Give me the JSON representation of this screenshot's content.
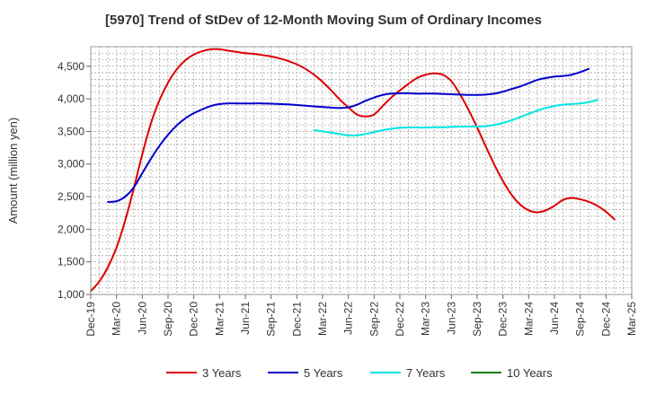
{
  "chart_data": {
    "type": "line",
    "title": "[5970]  Trend of StDev of 12-Month Moving Sum of Ordinary Incomes",
    "ylabel": "Amount (million yen)",
    "xlabel": "",
    "ylim": [
      1000,
      4800
    ],
    "yticks": [
      1000,
      1500,
      2000,
      2500,
      3000,
      3500,
      4000,
      4500
    ],
    "ytick_labels": [
      "1,000",
      "1,500",
      "2,000",
      "2,500",
      "3,000",
      "3,500",
      "4,000",
      "4,500"
    ],
    "x_categories": [
      "Dec-19",
      "Mar-20",
      "Jun-20",
      "Sep-20",
      "Dec-20",
      "Mar-21",
      "Jun-21",
      "Sep-21",
      "Dec-21",
      "Mar-22",
      "Jun-22",
      "Sep-22",
      "Dec-22",
      "Mar-23",
      "Jun-23",
      "Sep-23",
      "Dec-23",
      "Mar-24",
      "Jun-24",
      "Sep-24",
      "Dec-24",
      "Mar-25"
    ],
    "x_unit": "month",
    "grid": true,
    "legend_position": "bottom",
    "series": [
      {
        "name": "3 Years",
        "color": "#dd0000",
        "start": "Dec-19",
        "values": [
          1050,
          1200,
          1420,
          1720,
          2130,
          2620,
          3150,
          3620,
          3980,
          4250,
          4450,
          4590,
          4680,
          4730,
          4760,
          4760,
          4740,
          4720,
          4700,
          4690,
          4670,
          4650,
          4620,
          4580,
          4530,
          4460,
          4370,
          4260,
          4130,
          3990,
          3870,
          3760,
          3730,
          3760,
          3890,
          4020,
          4130,
          4230,
          4320,
          4370,
          4390,
          4370,
          4270,
          4070,
          3830,
          3560,
          3270,
          2990,
          2740,
          2530,
          2380,
          2290,
          2260,
          2290,
          2360,
          2450,
          2480,
          2460,
          2420,
          2360,
          2270,
          2150
        ]
      },
      {
        "name": "5 Years",
        "color": "#0000cc",
        "start": "Feb-20",
        "values": [
          2420,
          2430,
          2500,
          2640,
          2860,
          3080,
          3280,
          3450,
          3590,
          3700,
          3780,
          3840,
          3890,
          3920,
          3930,
          3930,
          3930,
          3930,
          3930,
          3925,
          3920,
          3915,
          3905,
          3895,
          3885,
          3875,
          3865,
          3860,
          3870,
          3910,
          3970,
          4020,
          4060,
          4080,
          4085,
          4085,
          4080,
          4080,
          4080,
          4075,
          4070,
          4065,
          4060,
          4060,
          4065,
          4080,
          4110,
          4150,
          4190,
          4240,
          4290,
          4320,
          4340,
          4350,
          4370,
          4410,
          4460
        ]
      },
      {
        "name": "7 Years",
        "color": "#00e5e5",
        "start": "Feb-22",
        "values": [
          3520,
          3500,
          3480,
          3460,
          3440,
          3440,
          3460,
          3490,
          3520,
          3540,
          3555,
          3560,
          3560,
          3560,
          3565,
          3565,
          3570,
          3575,
          3575,
          3575,
          3580,
          3600,
          3630,
          3670,
          3720,
          3770,
          3820,
          3860,
          3890,
          3910,
          3920,
          3930,
          3950,
          3980
        ]
      },
      {
        "name": "10 Years",
        "color": "#008000",
        "start": "Dec-19",
        "values": []
      }
    ]
  }
}
